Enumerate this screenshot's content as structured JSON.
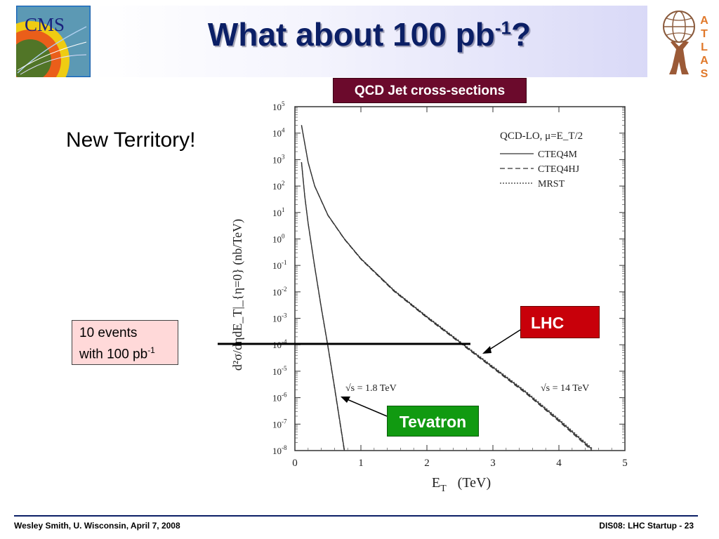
{
  "slide": {
    "title": "What about 100 pb",
    "title_sup": "-1",
    "title_suffix": "?",
    "left_text": "New Territory!",
    "events_line1": "10 events",
    "events_line2": "with 100 pb",
    "events_sup": "-1",
    "footer_left": "Wesley Smith, U. Wisconsin, April 7, 2008",
    "footer_right": "DIS08: LHC Startup -  23"
  },
  "logos": {
    "cms_text": "CMS",
    "atlas_letters": [
      "A",
      "T",
      "L",
      "A",
      "S"
    ]
  },
  "colors": {
    "title": "#0b1f66",
    "chart_header": "#6b0a2c",
    "lhc_tag": "#c8000a",
    "tevatron_tag": "#119a11",
    "events_box": "#ffd9d9"
  },
  "chart_data": {
    "type": "line",
    "header": "QCD Jet cross-sections",
    "xlabel": "E",
    "xlabel_sub": "T",
    "xlabel_unit": "(TeV)",
    "ylabel": "d²σ/dηdE_T|_{η=0}   (nb/TeV)",
    "xlim": [
      0,
      5
    ],
    "ylim_log10": [
      -8,
      5
    ],
    "yscale": "log",
    "x_ticks": [
      0,
      1,
      2,
      3,
      4,
      5
    ],
    "y_tick_exponents": [
      5,
      4,
      3,
      2,
      1,
      0,
      -1,
      -2,
      -3,
      -4,
      -5,
      -6,
      -7,
      -8
    ],
    "legend": {
      "title": "QCD-LO, μ=E_T/2",
      "entries": [
        "CTEQ4M",
        "CTEQ4HJ",
        "MRST"
      ],
      "styles": [
        "solid",
        "dashed",
        "dotted"
      ],
      "position": "top-right"
    },
    "annotations": {
      "tevatron_energy": "√s = 1.8 TeV",
      "lhc_energy": "√s = 14 TeV",
      "lhc_tag": "LHC",
      "tevatron_tag": "Tevatron",
      "threshold_log10_y": -4
    },
    "series": [
      {
        "name": "√s = 14 TeV",
        "x": [
          0.1,
          0.2,
          0.3,
          0.5,
          0.75,
          1.0,
          1.25,
          1.5,
          2.0,
          2.5,
          3.0,
          3.5,
          4.0,
          4.5
        ],
        "log10y": [
          4.3,
          2.9,
          2.0,
          0.9,
          0.0,
          -0.75,
          -1.35,
          -1.95,
          -2.95,
          -3.9,
          -4.85,
          -5.8,
          -6.85,
          -7.95
        ]
      },
      {
        "name": "√s = 1.8 TeV",
        "x": [
          0.1,
          0.15,
          0.2,
          0.3,
          0.4,
          0.5,
          0.6,
          0.7,
          0.75
        ],
        "log10y": [
          2.9,
          1.6,
          0.6,
          -1.05,
          -2.6,
          -4.05,
          -5.6,
          -7.2,
          -8.0
        ]
      }
    ]
  }
}
